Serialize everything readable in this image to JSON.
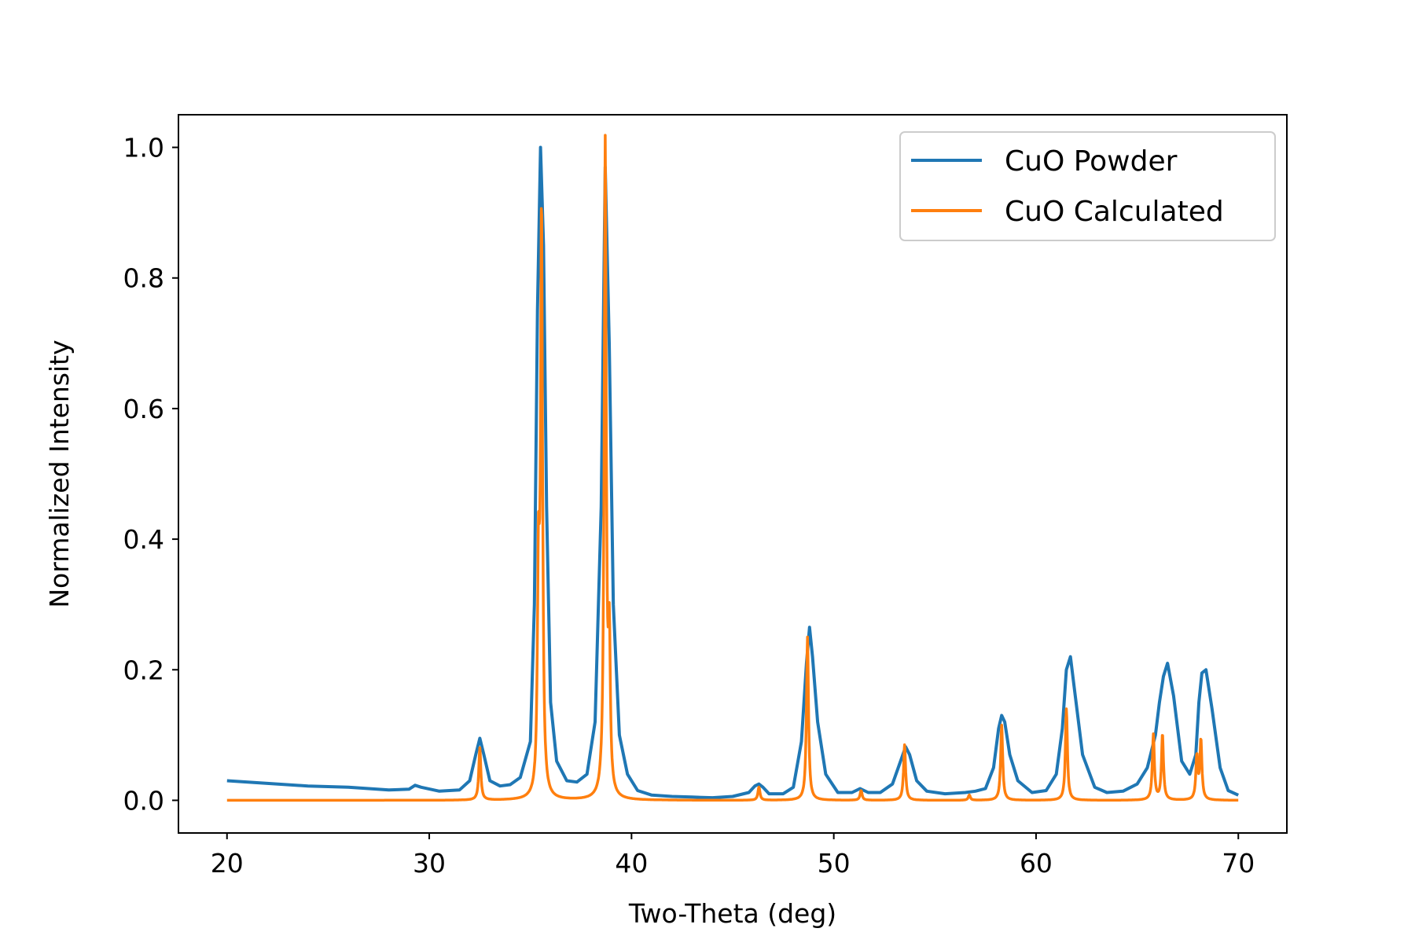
{
  "chart_data": {
    "type": "line",
    "title": "",
    "xlabel": "Two-Theta (deg)",
    "ylabel": "Normalized Intensity",
    "xlim": [
      17.6,
      72.4
    ],
    "ylim": [
      -0.05,
      1.05
    ],
    "xticks": [
      20,
      30,
      40,
      50,
      60,
      70
    ],
    "yticks": [
      0.0,
      0.2,
      0.4,
      0.6,
      0.8,
      1.0
    ],
    "xtick_labels": [
      "20",
      "30",
      "40",
      "50",
      "60",
      "70"
    ],
    "ytick_labels": [
      "0.0",
      "0.2",
      "0.4",
      "0.6",
      "0.8",
      "1.0"
    ],
    "grid": false,
    "legend_position": "top-right",
    "series": [
      {
        "name": "CuO Powder",
        "color": "#1f77b4",
        "x": [
          20.0,
          22.0,
          24.0,
          26.0,
          28.0,
          29.0,
          29.3,
          29.6,
          30.5,
          31.5,
          32.0,
          32.3,
          32.5,
          32.7,
          33.0,
          33.5,
          34.0,
          34.5,
          35.0,
          35.2,
          35.35,
          35.5,
          35.65,
          35.8,
          36.0,
          36.3,
          36.8,
          37.3,
          37.8,
          38.2,
          38.5,
          38.7,
          38.9,
          39.1,
          39.4,
          39.8,
          40.3,
          41.0,
          42.0,
          43.0,
          44.0,
          45.0,
          45.8,
          46.1,
          46.3,
          46.5,
          46.8,
          47.5,
          48.0,
          48.4,
          48.65,
          48.8,
          48.95,
          49.2,
          49.6,
          50.2,
          50.9,
          51.3,
          51.7,
          52.3,
          52.9,
          53.3,
          53.55,
          53.75,
          54.1,
          54.6,
          55.5,
          56.5,
          57.0,
          57.5,
          57.9,
          58.15,
          58.3,
          58.45,
          58.7,
          59.1,
          59.8,
          60.5,
          61.0,
          61.3,
          61.5,
          61.7,
          61.9,
          62.3,
          62.9,
          63.5,
          64.3,
          65.0,
          65.5,
          65.9,
          66.1,
          66.3,
          66.5,
          66.8,
          67.2,
          67.6,
          67.9,
          68.05,
          68.2,
          68.4,
          68.7,
          69.1,
          69.5,
          70.0
        ],
        "y": [
          0.03,
          0.026,
          0.022,
          0.02,
          0.016,
          0.017,
          0.023,
          0.02,
          0.014,
          0.016,
          0.03,
          0.07,
          0.095,
          0.07,
          0.03,
          0.022,
          0.024,
          0.035,
          0.09,
          0.3,
          0.75,
          1.0,
          0.85,
          0.45,
          0.15,
          0.06,
          0.03,
          0.028,
          0.04,
          0.12,
          0.45,
          0.97,
          0.7,
          0.3,
          0.1,
          0.04,
          0.015,
          0.008,
          0.006,
          0.005,
          0.004,
          0.006,
          0.012,
          0.022,
          0.025,
          0.02,
          0.01,
          0.01,
          0.02,
          0.09,
          0.21,
          0.265,
          0.22,
          0.12,
          0.04,
          0.012,
          0.012,
          0.018,
          0.012,
          0.012,
          0.025,
          0.06,
          0.082,
          0.07,
          0.03,
          0.014,
          0.01,
          0.012,
          0.014,
          0.018,
          0.05,
          0.11,
          0.13,
          0.12,
          0.07,
          0.03,
          0.012,
          0.015,
          0.04,
          0.11,
          0.2,
          0.22,
          0.17,
          0.07,
          0.02,
          0.012,
          0.014,
          0.025,
          0.05,
          0.1,
          0.15,
          0.19,
          0.21,
          0.16,
          0.06,
          0.04,
          0.07,
          0.15,
          0.195,
          0.2,
          0.14,
          0.05,
          0.015,
          0.008
        ]
      },
      {
        "name": "CuO Calculated",
        "color": "#ff7f0e",
        "peaks": [
          {
            "x": 32.5,
            "h": 0.08
          },
          {
            "x": 35.4,
            "h": 0.32
          },
          {
            "x": 35.55,
            "h": 0.88
          },
          {
            "x": 38.7,
            "h": 1.0
          },
          {
            "x": 38.9,
            "h": 0.22
          },
          {
            "x": 46.3,
            "h": 0.02
          },
          {
            "x": 48.7,
            "h": 0.25
          },
          {
            "x": 51.35,
            "h": 0.015
          },
          {
            "x": 53.5,
            "h": 0.085
          },
          {
            "x": 56.7,
            "h": 0.008
          },
          {
            "x": 58.3,
            "h": 0.115
          },
          {
            "x": 61.5,
            "h": 0.14
          },
          {
            "x": 65.8,
            "h": 0.1
          },
          {
            "x": 66.25,
            "h": 0.1
          },
          {
            "x": 67.95,
            "h": 0.065
          },
          {
            "x": 68.15,
            "h": 0.09
          }
        ]
      }
    ]
  }
}
